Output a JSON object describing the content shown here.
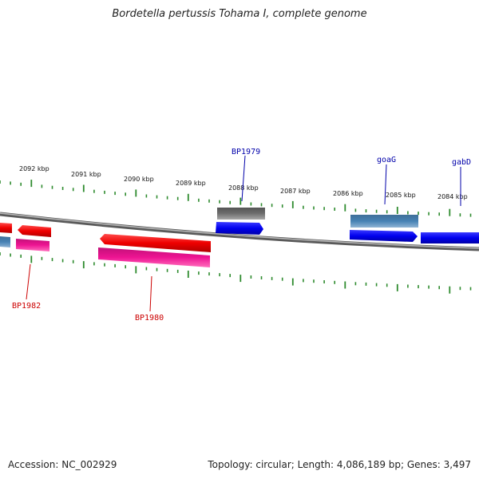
{
  "title": "Bordetella pertussis Tohama I, complete genome",
  "footer": {
    "accession": "Accession: NC_002929",
    "topology": "Topology: circular; Length: 4,086,189 bp; Genes: 3,497"
  },
  "scale_labels": [
    "2092 kbp",
    "2091 kbp",
    "2090 kbp",
    "2089 kbp",
    "2088 kbp",
    "2087 kbp",
    "2086 kbp",
    "2085 kbp",
    "2084 kbp"
  ],
  "gene_labels": {
    "bp1979": "BP1979",
    "goaG": "goaG",
    "gabD": "gabD",
    "bp1982": "BP1982",
    "bp1980": "BP1980"
  },
  "colors": {
    "outer_scale": "#2e8b2e",
    "backbone": "#888888",
    "forward_gene": "#0000ee",
    "reverse_gene": "#ee0000",
    "pseudo_blue": "#4682b4",
    "pink": "#ee1493",
    "gray_gene": "#666666",
    "forward_label": "#0000aa",
    "reverse_label": "#cc0000"
  }
}
